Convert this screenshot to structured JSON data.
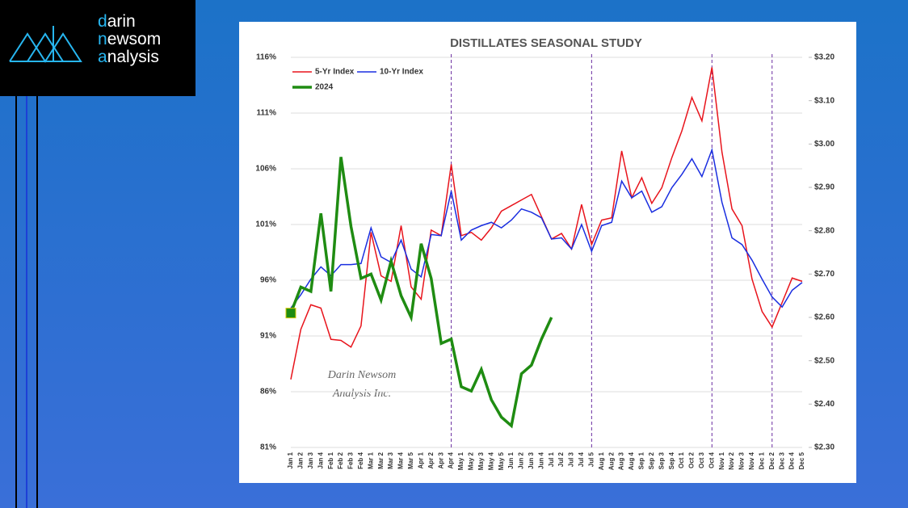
{
  "logo": {
    "lines": [
      "darin",
      "newsom",
      "analysis"
    ]
  },
  "chart_data": {
    "type": "line",
    "title": "DISTILLATES SEASONAL STUDY",
    "watermark": [
      "Darin Newsom",
      "Analysis Inc."
    ],
    "categories": [
      "Jan 1",
      "Jan 2",
      "Jan 3",
      "Jan 4",
      "Feb 1",
      "Feb 2",
      "Feb 3",
      "Feb 4",
      "Mar 1",
      "Mar 2",
      "Mar 3",
      "Mar 4",
      "Mar 5",
      "Apr 1",
      "Apr 2",
      "Apr 3",
      "Apr 4",
      "May 1",
      "May 2",
      "May 3",
      "May 4",
      "May 5",
      "Jun 1",
      "Jun 2",
      "Jun 3",
      "Jun 4",
      "Jul 1",
      "Jul 2",
      "Jul 3",
      "Jul 4",
      "Jul 5",
      "Aug 1",
      "Aug 2",
      "Aug 3",
      "Aug 4",
      "Sep 1",
      "Sep 2",
      "Sep 3",
      "Sep 4",
      "Oct 1",
      "Oct 2",
      "Oct 3",
      "Oct 4",
      "Nov 1",
      "Nov 2",
      "Nov 3",
      "Nov 4",
      "Dec 1",
      "Dec 2",
      "Dec 3",
      "Dec 4",
      "Dec 5"
    ],
    "series": [
      {
        "name": "5-Yr Index",
        "color": "#e8141c",
        "values": [
          87.1,
          91.6,
          93.8,
          93.5,
          90.7,
          90.6,
          90.0,
          91.9,
          100.3,
          96.4,
          95.9,
          100.9,
          95.4,
          94.3,
          100.5,
          100.0,
          106.4,
          100.0,
          100.3,
          99.6,
          100.7,
          102.2,
          102.7,
          103.2,
          103.7,
          101.7,
          99.7,
          100.2,
          98.8,
          102.8,
          99.2,
          101.4,
          101.6,
          107.6,
          103.4,
          105.2,
          102.9,
          104.3,
          107.0,
          109.4,
          112.4,
          110.3,
          115.1,
          107.5,
          102.4,
          100.9,
          96.1,
          93.2,
          91.8,
          94.0,
          96.2,
          95.9
        ]
      },
      {
        "name": "10-Yr Index",
        "color": "#1a2ee0",
        "values": [
          93.5,
          94.7,
          96.1,
          97.2,
          96.4,
          97.4,
          97.4,
          97.5,
          100.7,
          98.1,
          97.6,
          99.6,
          97.0,
          96.3,
          100.1,
          100.0,
          104.0,
          99.6,
          100.5,
          100.9,
          101.2,
          100.7,
          101.4,
          102.4,
          102.1,
          101.6,
          99.7,
          99.8,
          98.8,
          101.0,
          98.6,
          100.9,
          101.2,
          104.9,
          103.4,
          104.0,
          102.1,
          102.6,
          104.3,
          105.5,
          106.9,
          105.3,
          107.7,
          103.0,
          99.8,
          99.2,
          97.8,
          96.1,
          94.5,
          93.6,
          95.1,
          95.8
        ]
      },
      {
        "name": "2024",
        "color": "#1f8c12",
        "axis": "y2",
        "values": [
          2.61,
          2.67,
          2.66,
          2.84,
          2.66,
          2.97,
          2.81,
          2.69,
          2.7,
          2.64,
          2.73,
          2.65,
          2.6,
          2.77,
          2.69,
          2.54,
          2.55,
          2.44,
          2.43,
          2.48,
          2.41,
          2.37,
          2.35,
          2.47,
          2.49,
          2.55,
          2.6,
          null,
          null,
          null,
          null,
          null,
          null,
          null,
          null,
          null,
          null,
          null,
          null,
          null,
          null,
          null,
          null,
          null,
          null,
          null,
          null,
          null,
          null,
          null,
          null,
          null
        ]
      }
    ],
    "ylim": [
      81,
      116
    ],
    "yticks": [
      {
        "value": 81,
        "label": "81%"
      },
      {
        "value": 86,
        "label": "86%"
      },
      {
        "value": 91,
        "label": "91%"
      },
      {
        "value": 96,
        "label": "96%"
      },
      {
        "value": 101,
        "label": "101%"
      },
      {
        "value": 106,
        "label": "106%"
      },
      {
        "value": 111,
        "label": "111%"
      },
      {
        "value": 116,
        "label": "116%"
      }
    ],
    "y2lim": [
      2.3,
      3.2
    ],
    "y2ticks": [
      {
        "value": 2.3,
        "label": "$2.30"
      },
      {
        "value": 2.4,
        "label": "$2.40"
      },
      {
        "value": 2.5,
        "label": "$2.50"
      },
      {
        "value": 2.6,
        "label": "$2.60"
      },
      {
        "value": 2.7,
        "label": "$2.70"
      },
      {
        "value": 2.8,
        "label": "$2.80"
      },
      {
        "value": 2.9,
        "label": "$2.90"
      },
      {
        "value": 3.0,
        "label": "$3.00"
      },
      {
        "value": 3.1,
        "label": "$3.10"
      },
      {
        "value": 3.2,
        "label": "$3.20"
      }
    ],
    "vlines": [
      "Apr 4",
      "Jul 5",
      "Oct 4",
      "Dec 2"
    ],
    "grid": true,
    "legend": "top-left"
  }
}
